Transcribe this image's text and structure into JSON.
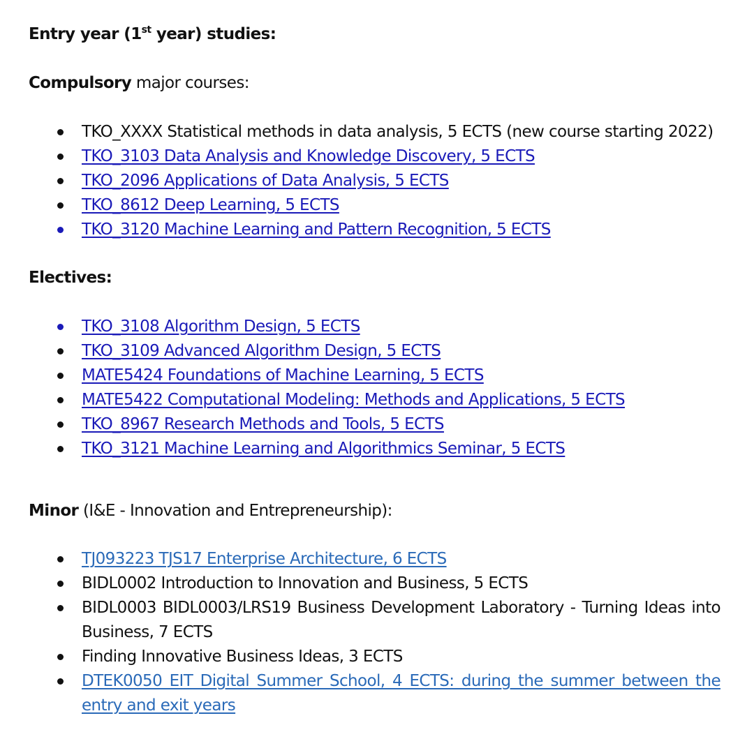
{
  "entry": {
    "title_pre": "Entry year (1",
    "title_sup": "st",
    "title_post": " year) studies:"
  },
  "compulsory": {
    "heading_bold": "Compulsory",
    "heading_rest": " major courses:",
    "items": [
      "TKO_XXXX Statistical methods in data analysis, 5 ECTS (new course starting 2022)",
      "TKO_3103 Data Analysis and Knowledge Discovery, 5 ECTS",
      "TKO_2096 Applications of Data Analysis, 5 ECTS",
      "TKO_8612 Deep Learning, 5 ECTS",
      "TKO_3120 Machine Learning and Pattern Recognition, 5 ECTS"
    ]
  },
  "electives": {
    "heading": "Electives:",
    "items": [
      "TKO_3108 Algorithm Design, 5 ECTS",
      "TKO_3109 Advanced Algorithm Design, 5 ECTS",
      "MATE5424 Foundations of Machine Learning, 5 ECTS",
      "MATE5422 Computational Modeling: Methods and Applications, 5 ECTS",
      "TKO_8967 Research Methods and Tools, 5 ECTS",
      "TKO_3121 Machine Learning and Algorithmics Seminar, 5 ECTS"
    ]
  },
  "minor": {
    "heading_bold": "Minor",
    "heading_rest": " (I&E - Innovation and Entrepreneurship):",
    "items": [
      "TJ093223 TJS17 Enterprise Architecture, 6 ECTS",
      "BIDL0002 Introduction to Innovation and Business, 5 ECTS",
      "BIDL0003 BIDL0003/LRS19 Business Development Laboratory - Turning Ideas into Business, 7 ECTS",
      "Finding Innovative Business Ideas, 3 ECTS",
      "DTEK0050 EIT Digital Summer School, 4 ECTS: during the summer between the entry and exit years"
    ]
  },
  "colors": {
    "text": "#111111",
    "link": "#1a1ab8",
    "link_alt": "#2a6ab8"
  }
}
